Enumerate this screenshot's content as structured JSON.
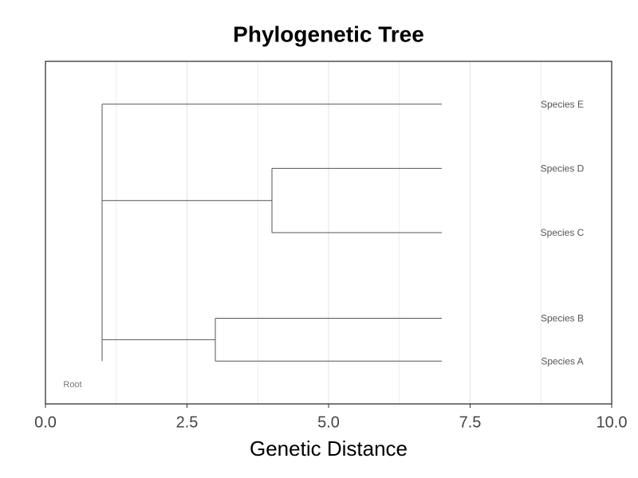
{
  "chart_data": {
    "type": "dendrogram",
    "title": "Phylogenetic Tree",
    "x_label": "Genetic Distance",
    "xlim": [
      0,
      10
    ],
    "ylim": [
      0,
      8
    ],
    "xticks": [
      {
        "value": 0,
        "label": "0.0"
      },
      {
        "value": 2.5,
        "label": "2.5"
      },
      {
        "value": 5,
        "label": "5.0"
      },
      {
        "value": 7.5,
        "label": "7.5"
      },
      {
        "value": 10,
        "label": "10.0"
      }
    ],
    "grid": true,
    "color": "#555555",
    "root_label": "Root",
    "leaves": [
      {
        "name": "Species A",
        "y": 1
      },
      {
        "name": "Species B",
        "y": 2
      },
      {
        "name": "Species C",
        "y": 4
      },
      {
        "name": "Species D",
        "y": 5.5
      },
      {
        "name": "Species E",
        "y": 7
      }
    ],
    "branches": [
      {
        "x0": 3,
        "x1": 7,
        "y": 1
      },
      {
        "x0": 3,
        "x1": 7,
        "y": 2
      },
      {
        "x0": 4,
        "x1": 7,
        "y": 4
      },
      {
        "x0": 4,
        "x1": 7,
        "y": 5.5
      },
      {
        "x0": 1,
        "x1": 7,
        "y": 7
      },
      {
        "x0": 1,
        "x1": 3,
        "y": 1.5
      },
      {
        "x0": 1,
        "x1": 4,
        "y": 4.75
      }
    ],
    "junctions": [
      {
        "x": 3,
        "y0": 1,
        "y1": 2
      },
      {
        "x": 4,
        "y0": 4,
        "y1": 5.5
      },
      {
        "x": 1,
        "y0": 1,
        "y1": 7
      }
    ]
  }
}
